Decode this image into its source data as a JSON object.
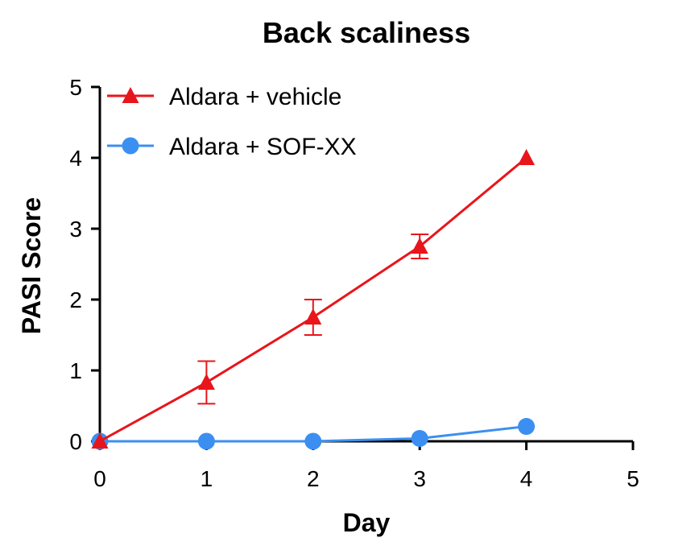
{
  "chart_data": {
    "type": "line",
    "title": "Back scaliness",
    "xlabel": "Day",
    "ylabel": "PASI Score",
    "xlim": [
      0,
      5
    ],
    "ylim": [
      0,
      5
    ],
    "xticks": [
      "0",
      "1",
      "2",
      "3",
      "4",
      "5"
    ],
    "yticks": [
      "0",
      "1",
      "2",
      "3",
      "4",
      "5"
    ],
    "grid": false,
    "legend_position": "top-left",
    "series": [
      {
        "name": "Aldara + vehicle",
        "color": "#e8151b",
        "marker": "triangle",
        "x": [
          0,
          1,
          2,
          3,
          4
        ],
        "y": [
          0,
          0.83,
          1.75,
          2.75,
          4.0
        ],
        "error": [
          0,
          0.3,
          0.25,
          0.17,
          0
        ]
      },
      {
        "name": "Aldara + SOF-XX",
        "color": "#3b8ff0",
        "marker": "circle",
        "x": [
          0,
          1,
          2,
          3,
          4
        ],
        "y": [
          0,
          0,
          0,
          0.04,
          0.21
        ],
        "error": [
          0,
          0,
          0,
          0,
          0
        ]
      }
    ]
  }
}
